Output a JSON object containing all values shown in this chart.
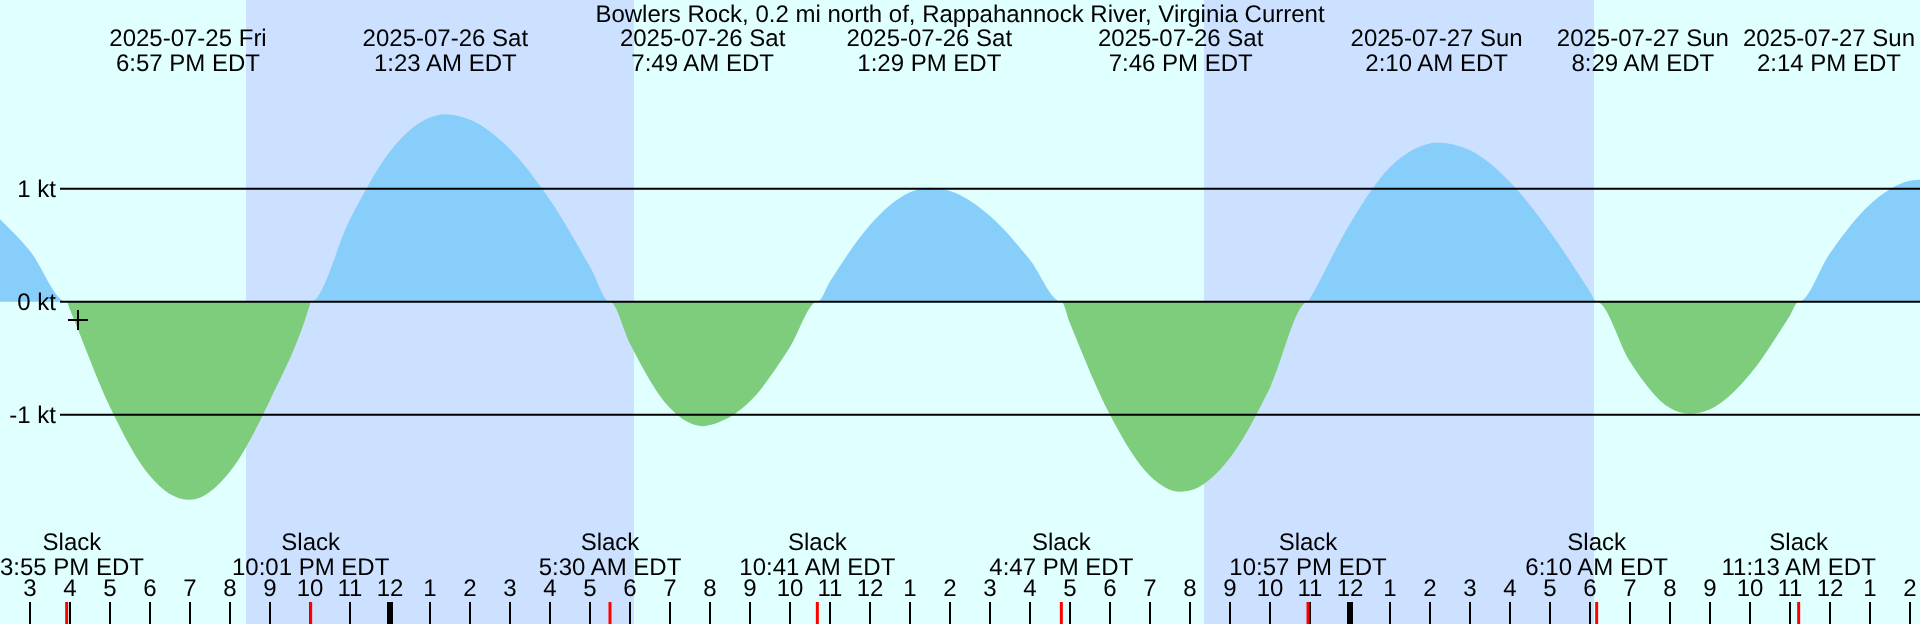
{
  "chart_data": {
    "type": "area",
    "title": "Bowlers Rock, 0.2 mi north of, Rappahannock River, Virginia Current",
    "x": [
      "2025-07-25T14:15",
      "2025-07-25T15:00",
      "2025-07-25T15:55",
      "2025-07-25T16:00",
      "2025-07-25T17:00",
      "2025-07-25T18:00",
      "2025-07-25T18:57",
      "2025-07-25T19:00",
      "2025-07-25T20:00",
      "2025-07-25T21:00",
      "2025-07-25T22:00",
      "2025-07-25T22:01",
      "2025-07-25T23:00",
      "2025-07-26T00:00",
      "2025-07-26T01:00",
      "2025-07-26T01:23",
      "2025-07-26T02:00",
      "2025-07-26T03:00",
      "2025-07-26T04:00",
      "2025-07-26T05:00",
      "2025-07-26T05:30",
      "2025-07-26T06:00",
      "2025-07-26T07:00",
      "2025-07-26T07:49",
      "2025-07-26T08:00",
      "2025-07-26T09:00",
      "2025-07-26T10:00",
      "2025-07-26T10:41",
      "2025-07-26T11:00",
      "2025-07-26T12:00",
      "2025-07-26T13:00",
      "2025-07-26T13:29",
      "2025-07-26T14:00",
      "2025-07-26T15:00",
      "2025-07-26T16:00",
      "2025-07-26T16:47",
      "2025-07-26T17:00",
      "2025-07-26T18:00",
      "2025-07-26T19:00",
      "2025-07-26T19:46",
      "2025-07-26T20:00",
      "2025-07-26T21:00",
      "2025-07-26T22:00",
      "2025-07-26T22:57",
      "2025-07-26T23:00",
      "2025-07-27T00:00",
      "2025-07-27T01:00",
      "2025-07-27T02:00",
      "2025-07-27T02:10",
      "2025-07-27T03:00",
      "2025-07-27T04:00",
      "2025-07-27T05:00",
      "2025-07-27T06:00",
      "2025-07-27T06:10",
      "2025-07-27T07:00",
      "2025-07-27T08:00",
      "2025-07-27T08:29",
      "2025-07-27T09:00",
      "2025-07-27T10:00",
      "2025-07-27T11:00",
      "2025-07-27T11:13",
      "2025-07-27T12:00",
      "2025-07-27T13:00",
      "2025-07-27T14:00",
      "2025-07-27T14:14",
      "2025-07-27T14:15"
    ],
    "series": [
      {
        "color": "#87cefa",
        "values": [
          0.73,
          0.45,
          0,
          0,
          0,
          0,
          0,
          0,
          0,
          0,
          0,
          0,
          0.73,
          1.33,
          1.63,
          1.66,
          1.61,
          1.35,
          0.9,
          0.31,
          0,
          0,
          0,
          0,
          0,
          0,
          0,
          0,
          0.18,
          0.68,
          0.97,
          1.01,
          0.98,
          0.76,
          0.37,
          0,
          0,
          0,
          0,
          0,
          0,
          0,
          0,
          0,
          0.03,
          0.69,
          1.19,
          1.4,
          1.41,
          1.34,
          1.06,
          0.62,
          0.09,
          0,
          0,
          0,
          0,
          0,
          0,
          0,
          0,
          0.43,
          0.86,
          1.07,
          1.08,
          1.08
        ]
      },
      {
        "color": "#7dcd7d",
        "values": [
          0,
          0,
          0,
          -0.07,
          -0.93,
          -1.54,
          -1.75,
          -1.75,
          -1.5,
          -0.87,
          -0.02,
          0,
          0,
          0,
          0,
          0,
          0,
          0,
          0,
          0,
          0,
          -0.37,
          -0.94,
          -1.1,
          -1.09,
          -0.88,
          -0.4,
          0,
          0,
          0,
          0,
          0,
          0,
          0,
          0,
          0,
          -0.19,
          -1,
          -1.54,
          -1.68,
          -1.67,
          -1.38,
          -0.76,
          0,
          0,
          0,
          0,
          0,
          0,
          0,
          0,
          0,
          0,
          0,
          -0.53,
          -0.94,
          -0.99,
          -0.95,
          -0.64,
          -0.12,
          0,
          0,
          0,
          0,
          0,
          0
        ]
      }
    ],
    "xlim": [
      "2025-07-25T14:15",
      "2025-07-27T14:15"
    ],
    "xticks": [
      {
        "value": "2025-07-25T15:00",
        "label": "3"
      },
      {
        "value": "2025-07-25T16:00",
        "label": "4"
      },
      {
        "value": "2025-07-25T17:00",
        "label": "5"
      },
      {
        "value": "2025-07-25T18:00",
        "label": "6"
      },
      {
        "value": "2025-07-25T19:00",
        "label": "7"
      },
      {
        "value": "2025-07-25T20:00",
        "label": "8"
      },
      {
        "value": "2025-07-25T21:00",
        "label": "9"
      },
      {
        "value": "2025-07-25T22:00",
        "label": "10"
      },
      {
        "value": "2025-07-25T23:00",
        "label": "11"
      },
      {
        "value": "2025-07-26T00:00",
        "label": "12"
      },
      {
        "value": "2025-07-26T01:00",
        "label": "1"
      },
      {
        "value": "2025-07-26T02:00",
        "label": "2"
      },
      {
        "value": "2025-07-26T03:00",
        "label": "3"
      },
      {
        "value": "2025-07-26T04:00",
        "label": "4"
      },
      {
        "value": "2025-07-26T05:00",
        "label": "5"
      },
      {
        "value": "2025-07-26T06:00",
        "label": "6"
      },
      {
        "value": "2025-07-26T07:00",
        "label": "7"
      },
      {
        "value": "2025-07-26T08:00",
        "label": "8"
      },
      {
        "value": "2025-07-26T09:00",
        "label": "9"
      },
      {
        "value": "2025-07-26T10:00",
        "label": "10"
      },
      {
        "value": "2025-07-26T11:00",
        "label": "11"
      },
      {
        "value": "2025-07-26T12:00",
        "label": "12"
      },
      {
        "value": "2025-07-26T13:00",
        "label": "1"
      },
      {
        "value": "2025-07-26T14:00",
        "label": "2"
      },
      {
        "value": "2025-07-26T15:00",
        "label": "3"
      },
      {
        "value": "2025-07-26T16:00",
        "label": "4"
      },
      {
        "value": "2025-07-26T17:00",
        "label": "5"
      },
      {
        "value": "2025-07-26T18:00",
        "label": "6"
      },
      {
        "value": "2025-07-26T19:00",
        "label": "7"
      },
      {
        "value": "2025-07-26T20:00",
        "label": "8"
      },
      {
        "value": "2025-07-26T21:00",
        "label": "9"
      },
      {
        "value": "2025-07-26T22:00",
        "label": "10"
      },
      {
        "value": "2025-07-26T23:00",
        "label": "11"
      },
      {
        "value": "2025-07-27T00:00",
        "label": "12"
      },
      {
        "value": "2025-07-27T01:00",
        "label": "1"
      },
      {
        "value": "2025-07-27T02:00",
        "label": "2"
      },
      {
        "value": "2025-07-27T03:00",
        "label": "3"
      },
      {
        "value": "2025-07-27T04:00",
        "label": "4"
      },
      {
        "value": "2025-07-27T05:00",
        "label": "5"
      },
      {
        "value": "2025-07-27T06:00",
        "label": "6"
      },
      {
        "value": "2025-07-27T07:00",
        "label": "7"
      },
      {
        "value": "2025-07-27T08:00",
        "label": "8"
      },
      {
        "value": "2025-07-27T09:00",
        "label": "9"
      },
      {
        "value": "2025-07-27T10:00",
        "label": "10"
      },
      {
        "value": "2025-07-27T11:00",
        "label": "11"
      },
      {
        "value": "2025-07-27T12:00",
        "label": "12"
      },
      {
        "value": "2025-07-27T13:00",
        "label": "1"
      },
      {
        "value": "2025-07-27T14:00",
        "label": "2"
      }
    ],
    "ylim": [
      -2.85,
      2.67
    ],
    "yticks": [
      {
        "value": -1,
        "label": "-1 kt"
      },
      {
        "value": 0,
        "label": "0 kt"
      },
      {
        "value": 1,
        "label": "1 kt"
      }
    ],
    "grid": "y",
    "bands": [
      {
        "axis": "x",
        "from": "2025-07-25T20:24",
        "to": "2025-07-26T06:06",
        "color": "#cce0ff"
      },
      {
        "axis": "x",
        "from": "2025-07-26T20:21",
        "to": "2025-07-27T06:06",
        "color": "#cce0ff"
      }
    ],
    "annotations": [
      "2025-07-25 Fri\n6:57 PM EDT",
      "2025-07-26 Sat\n1:23 AM EDT",
      "2025-07-26 Sat\n7:49 AM EDT",
      "2025-07-26 Sat\n1:29 PM EDT",
      "2025-07-26 Sat\n7:46 PM EDT",
      "2025-07-27 Sun\n2:10 AM EDT",
      "2025-07-27 Sun\n8:29 AM EDT",
      "2025-07-27 Sun\n2:14 PM EDT",
      "Slack\n3:55 PM EDT",
      "Slack\n10:01 PM EDT",
      "Slack\n5:30 AM EDT",
      "Slack\n10:41 AM EDT",
      "Slack\n4:47 PM EDT",
      "Slack\n10:57 PM EDT",
      "Slack\n6:10 AM EDT",
      "Slack\n11:13 AM EDT"
    ]
  }
}
